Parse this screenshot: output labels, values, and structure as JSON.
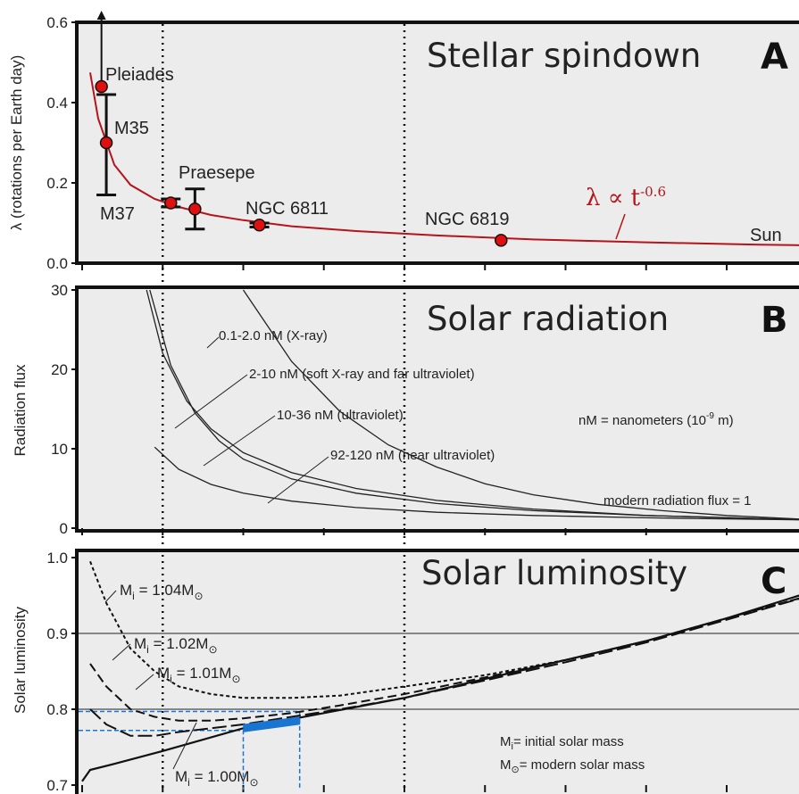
{
  "chart_data": [
    {
      "type": "scatter",
      "title": "Stellar spindown",
      "panel_letter": "A",
      "ylabel": "λ (rotations per Earth day)",
      "ylim": [
        0,
        0.6
      ],
      "yticks": [
        "0.0",
        "0.2",
        "0.4",
        "0.6"
      ],
      "grid": false,
      "fit_label": {
        "main": "λ ∝ t",
        "exp": "-0.6"
      },
      "fit_color": "#b4141b",
      "point_color": "#e01010",
      "points": [
        {
          "name": "Pleiades",
          "x": 0.12,
          "y": 0.44
        },
        {
          "name": "M35",
          "x": 0.15,
          "y": 0.3,
          "err_lo": 0.17,
          "err_hi": 0.42
        },
        {
          "name": "M37",
          "x": 0.55,
          "y": 0.15,
          "err_lo": 0.14,
          "err_hi": 0.16
        },
        {
          "name": "Praesepe",
          "x": 0.7,
          "y": 0.135,
          "err_lo": 0.085,
          "err_hi": 0.185
        },
        {
          "name": "NGC 6811",
          "x": 1.1,
          "y": 0.095,
          "err_lo": 0.09,
          "err_hi": 0.1
        },
        {
          "name": "NGC 6819",
          "x": 2.6,
          "y": 0.057
        },
        {
          "name": "Sun",
          "x": 4.6,
          "y": 0.038
        }
      ],
      "fit": {
        "x": [
          0.05,
          0.1,
          0.2,
          0.3,
          0.45,
          0.6,
          0.8,
          1.0,
          1.3,
          1.7,
          2.2,
          2.8,
          3.5,
          4.2,
          4.6
        ],
        "y": [
          0.475,
          0.36,
          0.245,
          0.195,
          0.16,
          0.14,
          0.12,
          0.107,
          0.092,
          0.08,
          0.069,
          0.059,
          0.052,
          0.046,
          0.044
        ]
      }
    },
    {
      "type": "line",
      "title": "Solar radiation",
      "panel_letter": "B",
      "ylabel": "Radiation flux",
      "ylim": [
        0,
        30
      ],
      "yticks": [
        "0",
        "10",
        "20",
        "30"
      ],
      "grid": false,
      "note": "nM  = nanometers (10",
      "note_exp": "-9",
      "note_tail": " m)",
      "modern_note": "modern radiation flux = 1",
      "series": [
        {
          "name": "0.1-2.0 nM (X-ray)",
          "x": [
            1.0,
            1.3,
            1.6,
            1.9,
            2.2,
            2.5,
            2.8,
            3.2,
            3.6,
            4.0,
            4.6
          ],
          "y": [
            30,
            21,
            14.7,
            10.5,
            7.7,
            5.6,
            4.2,
            3.0,
            2.2,
            1.6,
            1.0
          ]
        },
        {
          "name": "2-10 nM (soft X-ray and far ultraviolet)",
          "x": [
            0.4,
            0.5,
            0.65,
            0.8,
            1.0,
            1.3,
            1.7,
            2.2,
            2.8,
            3.5,
            4.6
          ],
          "y": [
            30,
            22,
            16,
            12.5,
            9.5,
            7,
            5,
            3.5,
            2.4,
            1.6,
            1.0
          ]
        },
        {
          "name": "10-36 nM (ultraviolet)",
          "x": [
            0.42,
            0.55,
            0.7,
            0.85,
            1.0,
            1.3,
            1.7,
            2.2,
            2.8,
            3.5,
            4.6
          ],
          "y": [
            30,
            20.5,
            14.5,
            11,
            8.7,
            6.2,
            4.4,
            3.1,
            2.2,
            1.6,
            1.0
          ]
        },
        {
          "name": "92-120 nM (near ultraviolet)",
          "x": [
            0.45,
            0.6,
            0.8,
            1.0,
            1.3,
            1.7,
            2.2,
            2.8,
            3.5,
            4.6
          ],
          "y": [
            10.2,
            7.4,
            5.5,
            4.4,
            3.4,
            2.6,
            2.0,
            1.6,
            1.3,
            1.0
          ]
        }
      ]
    },
    {
      "type": "line",
      "title": "Solar luminosity",
      "panel_letter": "C",
      "ylabel": "Solar luminosity",
      "ylim": [
        0.7,
        1.0
      ],
      "yticks": [
        "0.7",
        "0.8",
        "0.9",
        "1.0"
      ],
      "grid": true,
      "note_line1": "= initial solar mass",
      "note_line2": "= modern solar mass",
      "highlight_color": "#1a75d1",
      "series": [
        {
          "name": "Mi = 1.04M⊙",
          "label_main": "M",
          "label_sub": "i",
          "label_mid": " = 1.04M",
          "label_sun": "⊙",
          "dash": "4,3",
          "x": [
            0.05,
            0.15,
            0.3,
            0.45,
            0.6,
            0.8,
            1.0,
            1.3,
            1.6,
            2.0,
            2.5,
            3.0,
            3.5,
            4.0,
            4.6
          ],
          "y": [
            0.995,
            0.94,
            0.88,
            0.85,
            0.83,
            0.82,
            0.815,
            0.815,
            0.818,
            0.83,
            0.845,
            0.865,
            0.89,
            0.92,
            0.955
          ]
        },
        {
          "name": "Mi = 1.02M⊙",
          "label_main": "M",
          "label_sub": "i",
          "label_mid": " = 1.02M",
          "label_sun": "⊙",
          "dash": "10,5",
          "x": [
            0.05,
            0.15,
            0.3,
            0.45,
            0.6,
            0.8,
            1.0,
            1.3,
            1.6,
            2.0,
            2.5,
            3.0,
            3.5,
            4.0,
            4.6
          ],
          "y": [
            0.86,
            0.83,
            0.8,
            0.79,
            0.785,
            0.785,
            0.788,
            0.795,
            0.805,
            0.82,
            0.842,
            0.865,
            0.89,
            0.92,
            0.955
          ]
        },
        {
          "name": "Mi = 1.01M⊙",
          "label_main": "M",
          "label_sub": "i",
          "label_mid": " = 1.01M",
          "label_sun": "⊙",
          "dash": "16,5",
          "x": [
            0.05,
            0.15,
            0.3,
            0.45,
            0.6,
            0.8,
            1.0,
            1.3,
            1.6,
            2.0,
            2.5,
            3.0,
            3.5,
            4.0,
            4.6
          ],
          "y": [
            0.8,
            0.78,
            0.765,
            0.765,
            0.77,
            0.775,
            0.78,
            0.79,
            0.8,
            0.815,
            0.838,
            0.862,
            0.888,
            0.918,
            0.955
          ]
        },
        {
          "name": "Mi = 1.00M⊙",
          "label_main": "M",
          "label_sub": "i",
          "label_mid": " = 1.00M",
          "label_sun": "⊙",
          "dash": "",
          "x": [
            0.0,
            0.05,
            0.2,
            0.5,
            1.0,
            1.5,
            2.0,
            2.5,
            3.0,
            3.5,
            4.0,
            4.6
          ],
          "y": [
            0.705,
            0.72,
            0.728,
            0.745,
            0.775,
            0.795,
            0.815,
            0.84,
            0.865,
            0.89,
            0.92,
            0.96
          ]
        }
      ],
      "highlight": {
        "x": [
          1.0,
          1.35
        ],
        "y": [
          0.775,
          0.785
        ]
      }
    }
  ]
}
